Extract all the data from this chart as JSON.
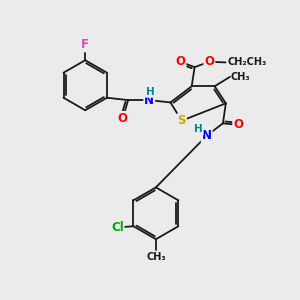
{
  "bg_color": "#ebebeb",
  "bond_color": "#1a1a1a",
  "bond_width": 1.3,
  "atom_colors": {
    "F": "#dd44cc",
    "O": "#ff0000",
    "N": "#0000ff",
    "S": "#ccaa00",
    "H": "#008888",
    "Cl": "#00aa00",
    "C": "#1a1a1a"
  },
  "font_size": 8.5,
  "fig_size": [
    3.0,
    3.0
  ],
  "dpi": 100,
  "xlim": [
    0,
    10
  ],
  "ylim": [
    0,
    10
  ]
}
